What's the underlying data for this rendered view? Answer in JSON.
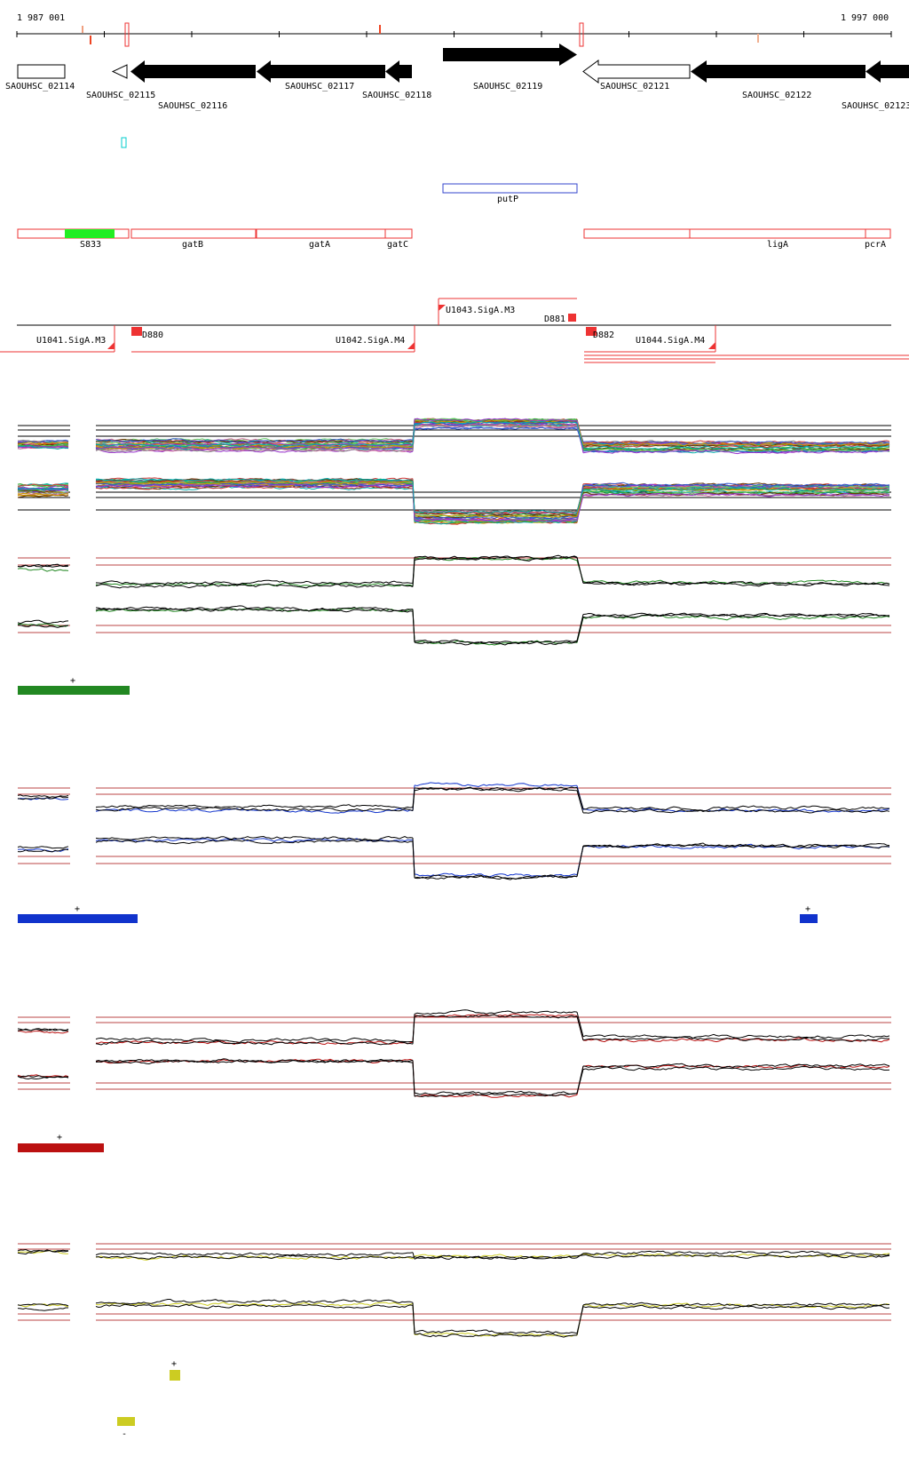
{
  "coords": {
    "start": "1 987 001",
    "end": "1 997 000"
  },
  "genes": [
    {
      "label": "SAOUHSC_02114",
      "fill": "open"
    },
    {
      "label": "SAOUHSC_02115",
      "fill": "open"
    },
    {
      "label": "SAOUHSC_02116",
      "fill": "solid"
    },
    {
      "label": "SAOUHSC_02117",
      "fill": "solid"
    },
    {
      "label": "SAOUHSC_02118",
      "fill": "solid"
    },
    {
      "label": "SAOUHSC_02119",
      "fill": "solid"
    },
    {
      "label": "SAOUHSC_02121",
      "fill": "open"
    },
    {
      "label": "SAOUHSC_02122",
      "fill": "solid"
    },
    {
      "label": "SAOUHSC_02123",
      "fill": "solid"
    }
  ],
  "regulon_feature": {
    "label": "putP",
    "color": "#3344cc"
  },
  "operon_features": [
    {
      "label": "S833",
      "color": "#22ee22"
    },
    {
      "label": "gatB",
      "color": "#ee3333"
    },
    {
      "label": "gatA",
      "color": "#ee3333"
    },
    {
      "label": "gatC",
      "color": "#ee3333"
    },
    {
      "label": "ligA",
      "color": "#ee3333"
    },
    {
      "label": "pcrA",
      "color": "#ee3333"
    }
  ],
  "transcription_units": [
    {
      "label": "U1041.SigA.M3"
    },
    {
      "label": "U1042.SigA.M4"
    },
    {
      "label": "U1043.SigA.M3"
    },
    {
      "label": "U1044.SigA.M4"
    }
  ],
  "terminators": [
    {
      "label": "D880"
    },
    {
      "label": "D881"
    },
    {
      "label": "D882"
    }
  ],
  "clusters": [
    {
      "color": "#228822",
      "strand_mark": "+"
    },
    {
      "color": "#1133cc",
      "strand_mark": "+"
    },
    {
      "color": "#bb1111",
      "strand_mark": "+"
    },
    {
      "color": "#cccc22",
      "strand_mark_plus": "+",
      "strand_mark_minus": "-"
    }
  ],
  "line_colors": [
    "#cc3333",
    "#33aa33",
    "#3355cc",
    "#cc9900",
    "#9933cc",
    "#00aaaa",
    "#888888",
    "#cc6699",
    "#663300",
    "#66cc66"
  ]
}
